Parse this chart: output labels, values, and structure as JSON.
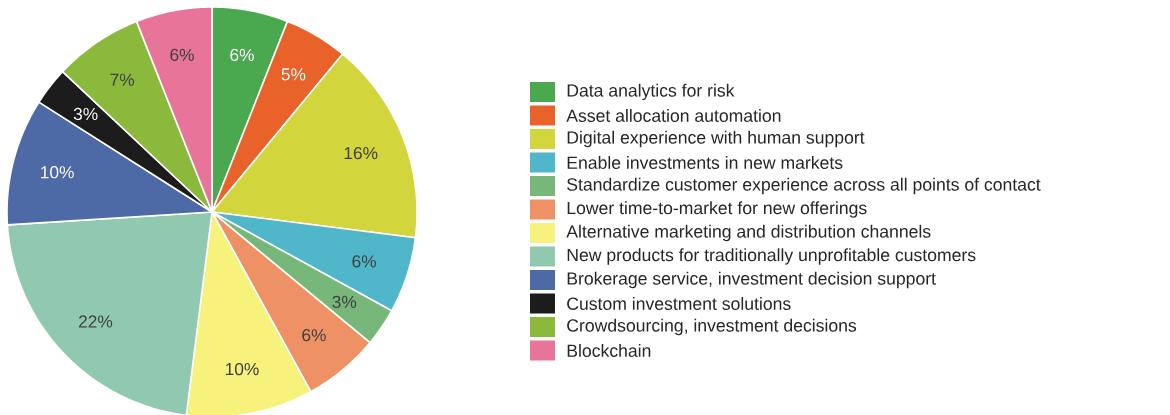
{
  "chart_data": {
    "type": "pie",
    "categories": [
      "Data analytics for risk",
      "Asset allocation automation",
      "Digital experience with human support",
      "Enable investments in new markets",
      "Standardize customer experience across all points of contact",
      "Lower time-to-market for new offerings",
      "Alternative marketing and distribution channels",
      "New products for traditionally unprofitable customers",
      "Brokerage service, investment decision support",
      "Custom investment solutions",
      "Crowdsourcing, investment decisions",
      "Blockchain"
    ],
    "values": [
      6,
      5,
      16,
      6,
      3,
      6,
      10,
      22,
      10,
      3,
      7,
      6
    ],
    "value_labels": [
      "6%",
      "5%",
      "16%",
      "6%",
      "3%",
      "6%",
      "10%",
      "22%",
      "10%",
      "3%",
      "7%",
      "6%"
    ],
    "colors": [
      "#4aa84e",
      "#e8622a",
      "#d2d53c",
      "#4fb7c9",
      "#78b77a",
      "#ee9265",
      "#f7f27c",
      "#90c9b0",
      "#4d6aa6",
      "#1c1c1c",
      "#8bb93c",
      "#e8749a"
    ],
    "legend": "right"
  }
}
